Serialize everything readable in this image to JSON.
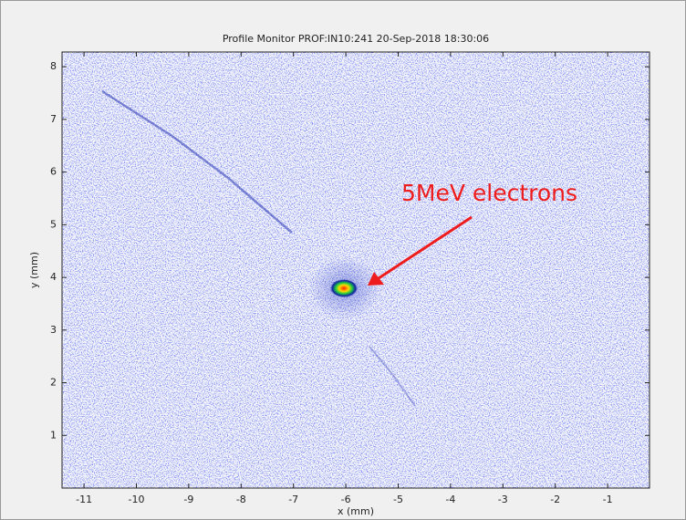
{
  "chart_data": {
    "type": "image",
    "title": "Profile Monitor PROF:IN10:241 20-Sep-2018 18:30:06",
    "x_label": "x (mm)",
    "y_label": "y (mm)",
    "annotation": "5MeV electrons",
    "annotation_color": "#ee1c1c",
    "xlim": [
      -11.42,
      -0.2
    ],
    "ylim": [
      0,
      8.28
    ],
    "xticks": [
      -11,
      -10,
      -9,
      -8,
      -7,
      -6,
      -5,
      -4,
      -3,
      -2,
      -1
    ],
    "yticks": [
      1,
      2,
      3,
      4,
      5,
      6,
      7,
      8
    ]
  }
}
